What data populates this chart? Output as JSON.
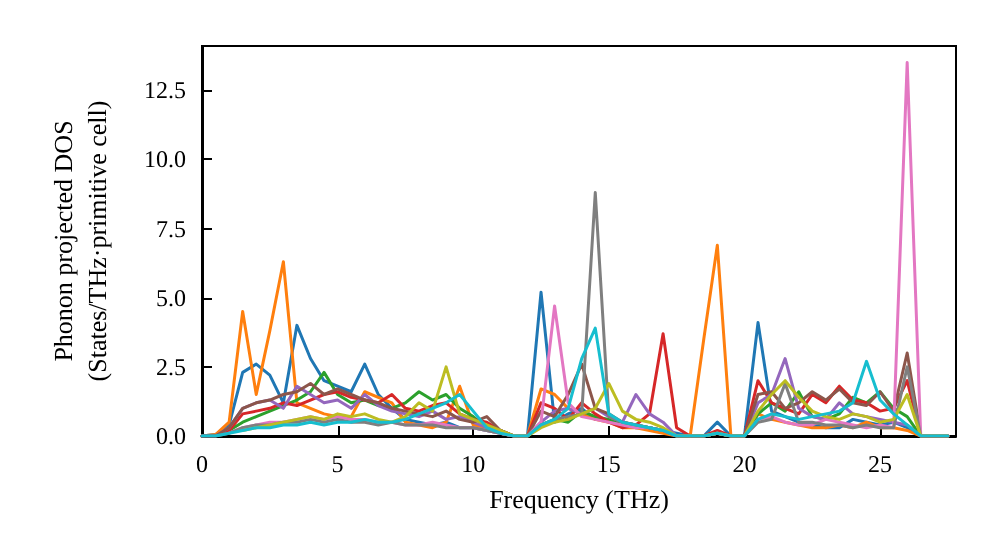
{
  "chart_data": {
    "type": "line",
    "xlabel": "Frequency (THz)",
    "ylabel": "Phonon projected DOS\n(States/THz·primitive cell)",
    "x": [
      0,
      0.5,
      1,
      1.5,
      2,
      2.5,
      3,
      3.5,
      4,
      4.5,
      5,
      5.5,
      6,
      6.5,
      7,
      7.5,
      8,
      8.5,
      9,
      9.5,
      10,
      10.5,
      11,
      11.5,
      12,
      12.5,
      13,
      13.5,
      14,
      14.5,
      15,
      15.5,
      16,
      16.5,
      17,
      17.5,
      18,
      18.5,
      19,
      19.5,
      20,
      20.5,
      21,
      21.5,
      22,
      22.5,
      23,
      23.5,
      24,
      24.5,
      25,
      25.5,
      26,
      26.5,
      27,
      27.5
    ],
    "xlim": [
      0,
      27.8
    ],
    "xticks": [
      0,
      5,
      10,
      15,
      20,
      25
    ],
    "ylim": [
      0,
      14.1
    ],
    "yticks": [
      {
        "value": 0,
        "label": "0.0"
      },
      {
        "value": 2.5,
        "label": "2.5"
      },
      {
        "value": 5,
        "label": "5.0"
      },
      {
        "value": 7.5,
        "label": "7.5"
      },
      {
        "value": 10,
        "label": "10.0"
      },
      {
        "value": 12.5,
        "label": "12.5"
      }
    ],
    "grid": false,
    "marker": "none",
    "line_style": "solid",
    "series": [
      {
        "color": "#1f77b4",
        "values": [
          0,
          0.05,
          0.4,
          2.3,
          2.6,
          2.2,
          1.2,
          4.0,
          2.8,
          2.0,
          1.8,
          1.6,
          2.6,
          1.5,
          1.0,
          0.6,
          0.5,
          0.4,
          0.5,
          0.3,
          0.3,
          0.2,
          0.1,
          0,
          0,
          5.2,
          0.5,
          0.8,
          1.0,
          0.6,
          0.6,
          0.4,
          0.3,
          0.3,
          0.2,
          0.1,
          0,
          0,
          0.5,
          0,
          0,
          4.1,
          0.9,
          0.7,
          0.5,
          0.4,
          0.3,
          0.3,
          0.6,
          0.5,
          0.4,
          0.5,
          0.3,
          0,
          0,
          0
        ]
      },
      {
        "color": "#ff7f0e",
        "values": [
          0,
          0.05,
          0.5,
          4.5,
          1.5,
          3.8,
          6.3,
          1.2,
          1.0,
          0.8,
          0.7,
          0.7,
          1.6,
          1.4,
          1.2,
          0.5,
          0.4,
          0.3,
          0.5,
          1.8,
          0.4,
          0.3,
          0.1,
          0,
          0,
          1.7,
          1.5,
          1.0,
          0.8,
          0.6,
          0.5,
          0.3,
          0.3,
          0.2,
          0.1,
          0,
          0,
          3.5,
          6.9,
          0,
          0,
          0.8,
          0.6,
          0.5,
          0.4,
          0.3,
          0.3,
          0.4,
          0.3,
          0.5,
          0.3,
          0.3,
          0.2,
          0,
          0,
          0
        ]
      },
      {
        "color": "#2ca02c",
        "values": [
          0,
          0,
          0.2,
          0.5,
          0.7,
          0.9,
          1.1,
          1.3,
          1.6,
          2.3,
          1.5,
          1.2,
          1.3,
          1.1,
          1.0,
          1.2,
          1.6,
          1.3,
          1.5,
          1.0,
          0.7,
          0.3,
          0.2,
          0,
          0,
          0.4,
          0.6,
          0.5,
          0.9,
          0.7,
          0.6,
          0.5,
          0.4,
          0.3,
          0.2,
          0,
          0,
          0,
          0.1,
          0,
          0,
          0.8,
          1.2,
          0.9,
          1.6,
          0.7,
          0.6,
          0.8,
          1.4,
          1.2,
          1.6,
          1.0,
          0.7,
          0,
          0,
          0
        ]
      },
      {
        "color": "#d62728",
        "values": [
          0,
          0,
          0.2,
          0.8,
          0.9,
          1.0,
          1.2,
          1.1,
          1.3,
          1.5,
          1.6,
          1.4,
          1.3,
          1.2,
          1.5,
          1.0,
          0.9,
          1.1,
          1.2,
          0.8,
          0.6,
          0.5,
          0.2,
          0,
          0,
          1.2,
          1.0,
          0.6,
          1.2,
          0.8,
          0.5,
          0.3,
          0.4,
          0.8,
          3.7,
          0.3,
          0,
          0,
          0.2,
          0,
          0,
          2.0,
          1.2,
          1.0,
          0.8,
          1.5,
          1.2,
          1.8,
          1.3,
          1.2,
          0.9,
          1.0,
          2.0,
          0,
          0,
          0
        ]
      },
      {
        "color": "#9467bd",
        "values": [
          0,
          0,
          0.3,
          1.0,
          1.2,
          1.3,
          1.0,
          1.8,
          1.5,
          1.2,
          1.3,
          1.0,
          1.5,
          1.1,
          0.9,
          0.8,
          0.7,
          0.9,
          0.6,
          0.7,
          0.5,
          0.3,
          0.1,
          0,
          0,
          0.5,
          0.9,
          1.0,
          0.8,
          1.0,
          0.7,
          0.5,
          1.5,
          0.8,
          0.5,
          0,
          0,
          0,
          0.1,
          0,
          0,
          1.2,
          1.5,
          2.8,
          1.0,
          0.7,
          0.6,
          1.2,
          0.8,
          0.7,
          0.6,
          0.5,
          0.4,
          0,
          0,
          0
        ]
      },
      {
        "color": "#8c564b",
        "values": [
          0,
          0,
          0.3,
          1.0,
          1.2,
          1.3,
          1.5,
          1.6,
          1.9,
          1.5,
          1.7,
          1.5,
          1.3,
          1.2,
          1.0,
          0.9,
          0.8,
          0.7,
          0.9,
          0.6,
          0.5,
          0.7,
          0.2,
          0,
          0,
          0.9,
          0.7,
          1.5,
          2.6,
          1.0,
          0.8,
          0.5,
          0.4,
          0.3,
          0.2,
          0,
          0,
          0,
          0.1,
          0,
          0,
          1.5,
          1.6,
          1.0,
          1.2,
          1.6,
          1.3,
          1.7,
          1.2,
          1.1,
          1.6,
          0.9,
          3.0,
          0,
          0,
          0
        ]
      },
      {
        "color": "#e377c2",
        "values": [
          null,
          null,
          0.1,
          0.3,
          0.4,
          0.5,
          0.5,
          0.6,
          0.7,
          0.6,
          0.7,
          0.6,
          0.6,
          0.5,
          0.5,
          0.4,
          0.4,
          0.5,
          0.4,
          0.3,
          0.3,
          0.2,
          0.1,
          0,
          0,
          0.5,
          4.7,
          1.2,
          0.7,
          0.6,
          0.5,
          0.4,
          0.3,
          0.3,
          0.2,
          0,
          0,
          0,
          0.1,
          0,
          0,
          0.6,
          0.7,
          0.5,
          0.4,
          0.4,
          0.6,
          0.5,
          0.4,
          0.3,
          0.4,
          0.3,
          13.5,
          0,
          0,
          0
        ]
      },
      {
        "color": "#7f7f7f",
        "values": [
          0,
          0,
          0.1,
          0.3,
          0.4,
          0.4,
          0.5,
          0.5,
          0.6,
          0.5,
          0.6,
          0.5,
          0.5,
          0.4,
          0.5,
          0.4,
          0.4,
          0.4,
          0.3,
          0.3,
          0.3,
          0.2,
          0.1,
          0,
          0,
          0.4,
          0.6,
          0.7,
          0.8,
          8.8,
          0.7,
          0.5,
          0.4,
          0.3,
          0.2,
          0,
          0,
          0,
          0.1,
          0,
          0,
          0.5,
          0.6,
          1.9,
          0.5,
          0.5,
          0.4,
          0.4,
          0.3,
          0.4,
          0.3,
          0.3,
          2.5,
          0,
          0,
          0
        ]
      },
      {
        "color": "#bcbd22",
        "values": [
          null,
          null,
          null,
          0.2,
          0.3,
          0.4,
          0.5,
          0.6,
          0.7,
          0.6,
          0.8,
          0.7,
          0.8,
          0.6,
          0.5,
          0.7,
          1.2,
          0.9,
          2.5,
          0.8,
          0.6,
          0.4,
          0.2,
          0,
          0,
          0.3,
          0.5,
          0.6,
          0.8,
          1.0,
          1.9,
          0.9,
          0.6,
          0.5,
          0.3,
          0,
          0,
          0,
          0.1,
          0,
          0,
          0.9,
          1.5,
          2.0,
          1.4,
          0.9,
          0.7,
          0.6,
          0.8,
          0.7,
          0.5,
          0.6,
          1.5,
          0,
          0,
          0
        ]
      },
      {
        "color": "#17becf",
        "values": [
          0,
          0,
          0.1,
          0.2,
          0.3,
          0.3,
          0.4,
          0.4,
          0.5,
          0.4,
          0.5,
          0.5,
          0.6,
          0.5,
          0.5,
          0.6,
          0.8,
          1.0,
          1.2,
          1.5,
          0.9,
          0.3,
          0.1,
          0,
          0,
          0.4,
          0.6,
          1.0,
          2.8,
          3.9,
          0.8,
          0.5,
          0.4,
          0.3,
          0.2,
          0,
          0,
          0,
          0.1,
          0,
          0,
          0.6,
          0.8,
          0.7,
          0.6,
          0.7,
          0.8,
          0.9,
          1.2,
          2.7,
          1.3,
          0.8,
          0.4,
          0,
          0,
          0
        ]
      }
    ]
  }
}
